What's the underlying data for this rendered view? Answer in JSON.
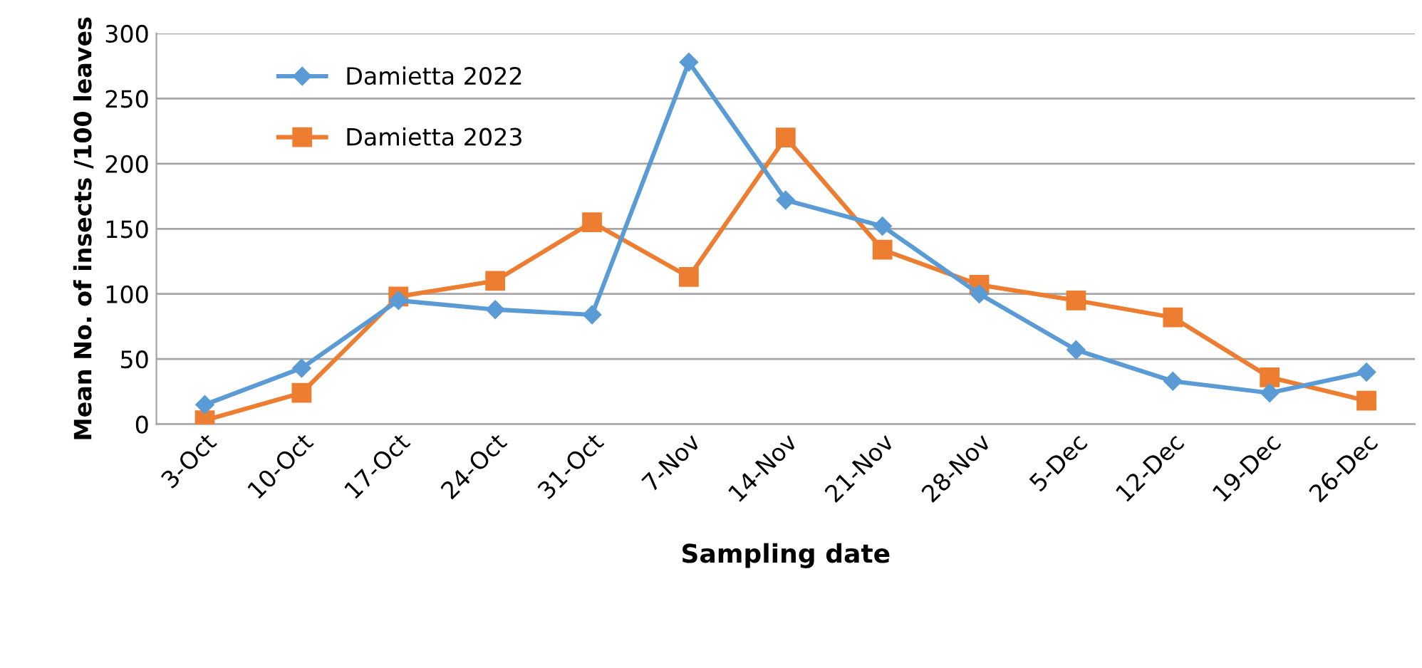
{
  "chart_data": {
    "type": "line",
    "xlabel": "Sampling date",
    "ylabel": "Mean No. of insects /100 leaves",
    "categories": [
      "3-Oct",
      "10-Oct",
      "17-Oct",
      "24-Oct",
      "31-Oct",
      "7-Nov",
      "14-Nov",
      "21-Nov",
      "28-Nov",
      "5-Dec",
      "12-Dec",
      "19-Dec",
      "26-Dec"
    ],
    "series": [
      {
        "name": "Damietta 2022",
        "color": "#5b9bd5",
        "marker": "diamond",
        "values": [
          15,
          43,
          95,
          88,
          84,
          278,
          172,
          152,
          100,
          57,
          33,
          24,
          40
        ]
      },
      {
        "name": "Damietta 2023",
        "color": "#ed7d31",
        "marker": "square",
        "values": [
          3,
          24,
          98,
          110,
          155,
          113,
          220,
          134,
          107,
          95,
          82,
          36,
          18
        ]
      }
    ],
    "ylim": [
      0,
      300
    ],
    "yticks": [
      0,
      50,
      100,
      150,
      200,
      250,
      300
    ],
    "grid": "y",
    "legend": "top left"
  }
}
